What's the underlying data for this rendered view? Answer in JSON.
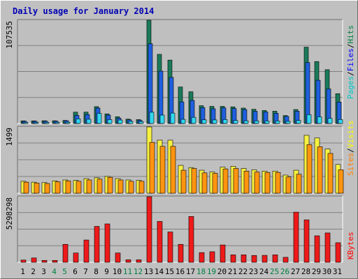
{
  "title": "Daily usage for January 2014",
  "chart_data": {
    "type": "bar",
    "days": [
      "1",
      "2",
      "3",
      "4",
      "5",
      "6",
      "7",
      "8",
      "9",
      "10",
      "11",
      "12",
      "13",
      "14",
      "15",
      "16",
      "17",
      "18",
      "19",
      "20",
      "21",
      "22",
      "23",
      "24",
      "25",
      "26",
      "27",
      "28",
      "29",
      "30",
      "31"
    ],
    "weekend_days": [
      "4",
      "5",
      "11",
      "12",
      "18",
      "19",
      "25",
      "26"
    ],
    "panels": [
      {
        "max_label": "107535",
        "ymax": 107535,
        "legend": [
          {
            "text": "Pages",
            "color": "#00c8c8"
          },
          {
            "text": "Files",
            "color": "#0000ff"
          },
          {
            "text": "Hits",
            "color": "#008040"
          }
        ],
        "series": [
          {
            "name": "Hits",
            "color": "#1a7a5a",
            "values": [
              2700,
              2700,
              2800,
              2800,
              3200,
              11800,
              11800,
              17500,
              10000,
              7000,
              4500,
              4000,
              107535,
              72000,
              66000,
              38000,
              33000,
              18500,
              17800,
              17800,
              17300,
              16000,
              14800,
              13500,
              12800,
              8200,
              14500,
              79500,
              64500,
              56000,
              31000
            ]
          },
          {
            "name": "Files",
            "color": "#1f5fe0",
            "values": [
              2300,
              2300,
              2400,
              2400,
              2800,
              8400,
              9300,
              16000,
              8700,
              5500,
              3800,
              3300,
              83000,
              54500,
              48000,
              22500,
              24000,
              16500,
              15300,
              16200,
              15500,
              14500,
              12700,
              12000,
              10600,
              7400,
              12800,
              63500,
              45000,
              36000,
              22300
            ]
          },
          {
            "name": "Pages",
            "color": "#30d8f0",
            "values": [
              1100,
              1100,
              1200,
              1200,
              1300,
              4800,
              4400,
              10500,
              4000,
              3600,
              2200,
              2000,
              11700,
              8700,
              10800,
              4300,
              6400,
              3800,
              3700,
              4100,
              3100,
              2800,
              2700,
              2600,
              2600,
              2200,
              3100,
              9200,
              6900,
              5300,
              4100
            ]
          }
        ]
      },
      {
        "max_label": "1499",
        "ymax": 1499,
        "legend": [
          {
            "text": "Sites",
            "color": "#ff8000"
          },
          {
            "text": "Visits",
            "color": "#ffff00"
          }
        ],
        "series": [
          {
            "name": "Visits",
            "color": "#f6f041",
            "values": [
              270,
              250,
              240,
              280,
              300,
              290,
              330,
              350,
              380,
              330,
              300,
              290,
              1499,
              1200,
              1200,
              630,
              580,
              520,
              480,
              590,
              610,
              560,
              530,
              500,
              500,
              410,
              520,
              1310,
              1250,
              1000,
              650
            ]
          },
          {
            "name": "Sites",
            "color": "#ff9410",
            "values": [
              250,
              230,
              220,
              260,
              280,
              270,
              300,
              320,
              360,
              300,
              270,
              270,
              1150,
              1060,
              1060,
              520,
              560,
              460,
              450,
              550,
              560,
              500,
              480,
              470,
              470,
              370,
              430,
              1100,
              1050,
              900,
              530
            ]
          }
        ]
      },
      {
        "max_label": "5298298",
        "ymax": 5298298,
        "legend": [
          {
            "text": "KBytes",
            "color": "#ff0000"
          }
        ],
        "series": [
          {
            "name": "KBytes",
            "color": "#ee1a1a",
            "values": [
              180000,
              350000,
              150000,
              150000,
              1450000,
              750000,
              1800000,
              2900000,
              3100000,
              750000,
              200000,
              200000,
              5298298,
              3300000,
              2450000,
              1450000,
              3700000,
              780000,
              850000,
              1400000,
              600000,
              600000,
              550000,
              560000,
              600000,
              400000,
              4050000,
              3430000,
              2140000,
              2370000,
              1580000
            ]
          }
        ]
      }
    ]
  }
}
